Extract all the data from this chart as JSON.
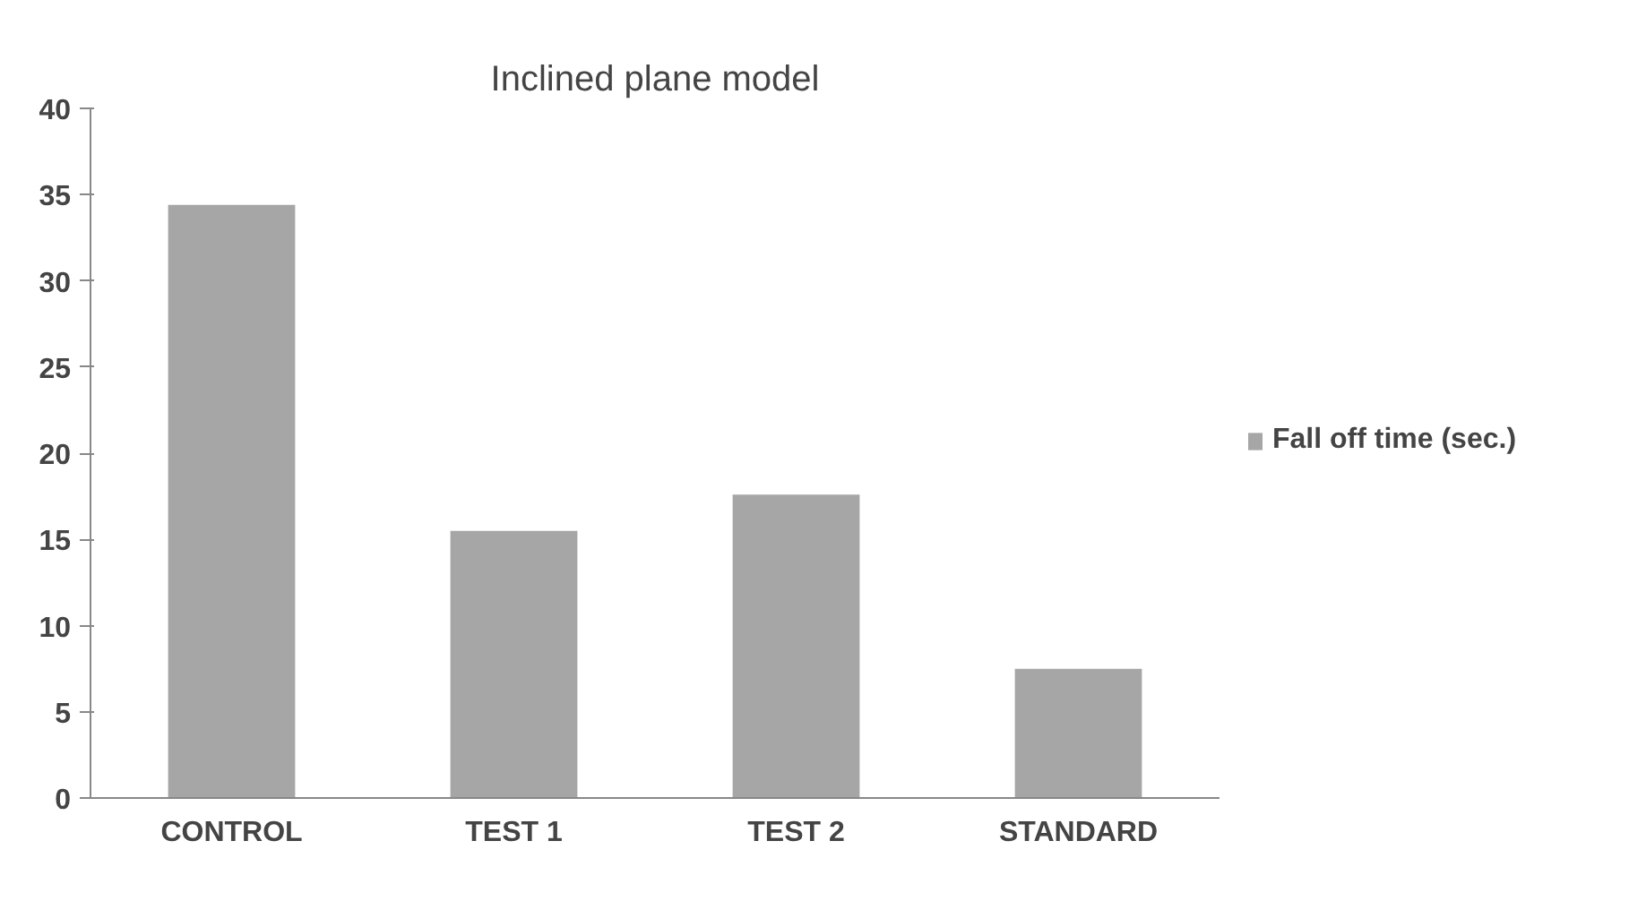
{
  "chart_data": {
    "type": "bar",
    "title": "Inclined plane model",
    "categories": [
      "CONTROL",
      "TEST 1",
      "TEST 2",
      "STANDARD"
    ],
    "series": [
      {
        "name": "Fall off time (sec.)",
        "color": "#a6a6a6",
        "values": [
          34.4,
          15.5,
          17.6,
          7.5
        ]
      }
    ],
    "ylim": [
      0,
      40
    ],
    "yticks": [
      0,
      5,
      10,
      15,
      20,
      25,
      30,
      35,
      40
    ],
    "grid": false,
    "legend": "right"
  }
}
